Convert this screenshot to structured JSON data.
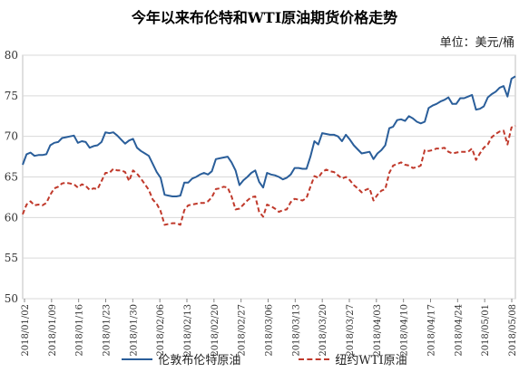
{
  "title": "今年以来布伦特和WTI原油期货价格走势",
  "unit_label": "单位：美元/桶",
  "colors": {
    "brent": "#2a5e9a",
    "wti": "#c0392b",
    "grid": "#d9d9d9"
  },
  "chart_data": {
    "type": "line",
    "title": "今年以来布伦特和WTI原油期货价格走势",
    "ylabel": "单位：美元/桶",
    "ylim": [
      50,
      80
    ],
    "yticks": [
      50,
      55,
      60,
      65,
      70,
      75,
      80
    ],
    "xticks": [
      "2018/01/02",
      "2018/01/09",
      "2018/01/16",
      "2018/01/23",
      "2018/01/30",
      "2018/02/06",
      "2018/02/13",
      "2018/02/20",
      "2018/02/27",
      "2018/03/06",
      "2018/03/13",
      "2018/03/20",
      "2018/03/27",
      "2018/04/03",
      "2018/04/10",
      "2018/04/17",
      "2018/04/24",
      "2018/05/01",
      "2018/05/08"
    ],
    "grid": true,
    "legend_position": "bottom",
    "series": [
      {
        "name": "伦敦布伦特原油",
        "style": "solid",
        "values": [
          [
            0,
            66.5
          ],
          [
            0.5,
            67.8
          ],
          [
            1,
            68.0
          ],
          [
            1.5,
            67.6
          ],
          [
            2,
            67.7
          ],
          [
            2.5,
            67.7
          ],
          [
            3,
            67.8
          ],
          [
            3.5,
            68.9
          ],
          [
            4,
            69.2
          ],
          [
            4.5,
            69.3
          ],
          [
            5,
            69.8
          ],
          [
            5.5,
            69.9
          ],
          [
            6,
            70.0
          ],
          [
            6.5,
            70.1
          ],
          [
            7,
            69.2
          ],
          [
            7.5,
            69.4
          ],
          [
            8,
            69.3
          ],
          [
            8.5,
            68.6
          ],
          [
            9,
            68.8
          ],
          [
            9.5,
            68.9
          ],
          [
            10,
            69.3
          ],
          [
            10.5,
            70.5
          ],
          [
            11,
            70.4
          ],
          [
            11.5,
            70.5
          ],
          [
            12,
            70.1
          ],
          [
            12.5,
            69.6
          ],
          [
            13,
            69.1
          ],
          [
            13.5,
            69.5
          ],
          [
            14,
            69.7
          ],
          [
            14.5,
            68.6
          ],
          [
            15,
            68.2
          ],
          [
            15.5,
            67.9
          ],
          [
            16,
            67.6
          ],
          [
            16.5,
            66.6
          ],
          [
            17,
            65.6
          ],
          [
            17.5,
            64.9
          ],
          [
            18,
            62.8
          ],
          [
            18.5,
            62.7
          ],
          [
            19,
            62.6
          ],
          [
            19.5,
            62.6
          ],
          [
            20,
            62.7
          ],
          [
            20.5,
            64.3
          ],
          [
            21,
            64.3
          ],
          [
            21.5,
            64.8
          ],
          [
            22,
            65.0
          ],
          [
            22.5,
            65.3
          ],
          [
            23,
            65.5
          ],
          [
            23.5,
            65.3
          ],
          [
            24,
            65.7
          ],
          [
            24.5,
            67.2
          ],
          [
            25,
            67.3
          ],
          [
            25.5,
            67.4
          ],
          [
            26,
            67.5
          ],
          [
            26.5,
            66.8
          ],
          [
            27,
            65.8
          ],
          [
            27.5,
            64.0
          ],
          [
            28,
            64.6
          ],
          [
            28.5,
            65.0
          ],
          [
            29,
            65.5
          ],
          [
            29.5,
            65.8
          ],
          [
            30,
            64.4
          ],
          [
            30.5,
            63.7
          ],
          [
            31,
            65.5
          ],
          [
            31.5,
            65.3
          ],
          [
            32,
            65.2
          ],
          [
            32.5,
            65.0
          ],
          [
            33,
            64.7
          ],
          [
            33.5,
            64.9
          ],
          [
            34,
            65.3
          ],
          [
            34.5,
            66.1
          ],
          [
            35,
            66.1
          ],
          [
            35.5,
            66.0
          ],
          [
            36,
            66.0
          ],
          [
            36.5,
            67.5
          ],
          [
            37,
            69.4
          ],
          [
            37.5,
            69.0
          ],
          [
            38,
            70.4
          ],
          [
            38.5,
            70.3
          ],
          [
            39,
            70.2
          ],
          [
            39.5,
            70.2
          ],
          [
            40,
            70.0
          ],
          [
            40.5,
            69.4
          ],
          [
            41,
            70.2
          ],
          [
            41.5,
            69.6
          ],
          [
            42,
            68.9
          ],
          [
            42.5,
            68.4
          ],
          [
            43,
            67.9
          ],
          [
            43.5,
            68.0
          ],
          [
            44,
            68.1
          ],
          [
            44.5,
            67.2
          ],
          [
            45,
            67.9
          ],
          [
            45.5,
            68.3
          ],
          [
            46,
            68.9
          ],
          [
            46.5,
            71.0
          ],
          [
            47,
            71.2
          ],
          [
            47.5,
            72.0
          ],
          [
            48,
            72.1
          ],
          [
            48.5,
            71.9
          ],
          [
            49,
            72.5
          ],
          [
            49.5,
            72.2
          ],
          [
            50,
            71.8
          ],
          [
            50.5,
            71.6
          ],
          [
            51,
            71.8
          ],
          [
            51.5,
            73.5
          ],
          [
            52,
            73.8
          ],
          [
            52.5,
            74.0
          ],
          [
            53,
            74.3
          ],
          [
            53.5,
            74.5
          ],
          [
            54,
            74.8
          ],
          [
            54.5,
            74.0
          ],
          [
            55,
            74.0
          ],
          [
            55.5,
            74.7
          ],
          [
            56,
            74.7
          ],
          [
            56.5,
            74.9
          ],
          [
            57,
            75.1
          ],
          [
            57.5,
            73.3
          ],
          [
            58,
            73.4
          ],
          [
            58.5,
            73.7
          ],
          [
            59,
            74.8
          ],
          [
            59.5,
            75.2
          ],
          [
            60,
            75.5
          ],
          [
            60.5,
            76.0
          ],
          [
            61,
            76.2
          ],
          [
            61.5,
            74.9
          ],
          [
            62,
            77.1
          ],
          [
            62.5,
            77.4
          ]
        ]
      },
      {
        "name": "纽约WTI原油",
        "style": "dashed",
        "values": [
          [
            0,
            60.4
          ],
          [
            0.5,
            61.6
          ],
          [
            1,
            62.0
          ],
          [
            1.5,
            61.5
          ],
          [
            2,
            61.6
          ],
          [
            2.5,
            61.5
          ],
          [
            3,
            61.8
          ],
          [
            3.5,
            62.8
          ],
          [
            4,
            63.6
          ],
          [
            4.5,
            63.8
          ],
          [
            5,
            64.2
          ],
          [
            5.5,
            64.3
          ],
          [
            6,
            64.2
          ],
          [
            6.5,
            64.1
          ],
          [
            7,
            63.7
          ],
          [
            7.5,
            64.1
          ],
          [
            8,
            63.9
          ],
          [
            8.5,
            63.4
          ],
          [
            9,
            63.6
          ],
          [
            9.5,
            63.5
          ],
          [
            10,
            64.5
          ],
          [
            10.5,
            65.5
          ],
          [
            11,
            65.5
          ],
          [
            11.5,
            66.0
          ],
          [
            12,
            65.8
          ],
          [
            12.5,
            65.8
          ],
          [
            13,
            65.6
          ],
          [
            13.5,
            64.5
          ],
          [
            14,
            65.8
          ],
          [
            14.5,
            65.4
          ],
          [
            15,
            64.8
          ],
          [
            15.5,
            64.1
          ],
          [
            16,
            63.4
          ],
          [
            16.5,
            62.2
          ],
          [
            17,
            61.7
          ],
          [
            17.5,
            60.8
          ],
          [
            18,
            59.1
          ],
          [
            18.5,
            59.2
          ],
          [
            19,
            59.3
          ],
          [
            19.5,
            59.3
          ],
          [
            20,
            59.1
          ],
          [
            20.5,
            60.9
          ],
          [
            21,
            61.5
          ],
          [
            21.5,
            61.6
          ],
          [
            22,
            61.7
          ],
          [
            22.5,
            61.8
          ],
          [
            23,
            61.8
          ],
          [
            23.5,
            62.0
          ],
          [
            24,
            62.5
          ],
          [
            24.5,
            63.5
          ],
          [
            25,
            63.6
          ],
          [
            25.5,
            63.8
          ],
          [
            26,
            63.7
          ],
          [
            26.5,
            62.6
          ],
          [
            27,
            61.0
          ],
          [
            27.5,
            61.1
          ],
          [
            28,
            61.6
          ],
          [
            28.5,
            62.1
          ],
          [
            29,
            62.5
          ],
          [
            29.5,
            62.6
          ],
          [
            30,
            60.7
          ],
          [
            30.5,
            60.1
          ],
          [
            31,
            61.6
          ],
          [
            31.5,
            61.4
          ],
          [
            32,
            61.1
          ],
          [
            32.5,
            60.7
          ],
          [
            33,
            60.9
          ],
          [
            33.5,
            61.0
          ],
          [
            34,
            61.9
          ],
          [
            34.5,
            62.3
          ],
          [
            35,
            62.2
          ],
          [
            35.5,
            62.1
          ],
          [
            36,
            62.4
          ],
          [
            36.5,
            63.8
          ],
          [
            37,
            65.1
          ],
          [
            37.5,
            64.9
          ],
          [
            38,
            65.6
          ],
          [
            38.5,
            65.9
          ],
          [
            39,
            65.7
          ],
          [
            39.5,
            65.6
          ],
          [
            40,
            65.2
          ],
          [
            40.5,
            64.8
          ],
          [
            41,
            65.0
          ],
          [
            41.5,
            64.6
          ],
          [
            42,
            64.0
          ],
          [
            42.5,
            63.6
          ],
          [
            43,
            63.1
          ],
          [
            43.5,
            63.4
          ],
          [
            44,
            63.6
          ],
          [
            44.5,
            62.1
          ],
          [
            45,
            62.8
          ],
          [
            45.5,
            63.3
          ],
          [
            46,
            63.5
          ],
          [
            46.5,
            65.5
          ],
          [
            47,
            66.4
          ],
          [
            47.5,
            66.6
          ],
          [
            48,
            66.8
          ],
          [
            48.5,
            66.5
          ],
          [
            49,
            66.4
          ],
          [
            49.5,
            66.1
          ],
          [
            50,
            66.2
          ],
          [
            50.5,
            66.4
          ],
          [
            51,
            68.3
          ],
          [
            51.5,
            68.2
          ],
          [
            52,
            68.3
          ],
          [
            52.5,
            68.5
          ],
          [
            53,
            68.5
          ],
          [
            53.5,
            68.6
          ],
          [
            54,
            68.1
          ],
          [
            54.5,
            67.9
          ],
          [
            55,
            68.0
          ],
          [
            55.5,
            68.1
          ],
          [
            56,
            68.1
          ],
          [
            56.5,
            68.1
          ],
          [
            57,
            68.5
          ],
          [
            57.5,
            67.1
          ],
          [
            58,
            67.9
          ],
          [
            58.5,
            68.6
          ],
          [
            59,
            69.0
          ],
          [
            59.5,
            69.9
          ],
          [
            60,
            70.3
          ],
          [
            60.5,
            70.6
          ],
          [
            61,
            70.7
          ],
          [
            61.5,
            69.0
          ],
          [
            62,
            71.1
          ],
          [
            62.5,
            71.3
          ]
        ]
      }
    ]
  }
}
